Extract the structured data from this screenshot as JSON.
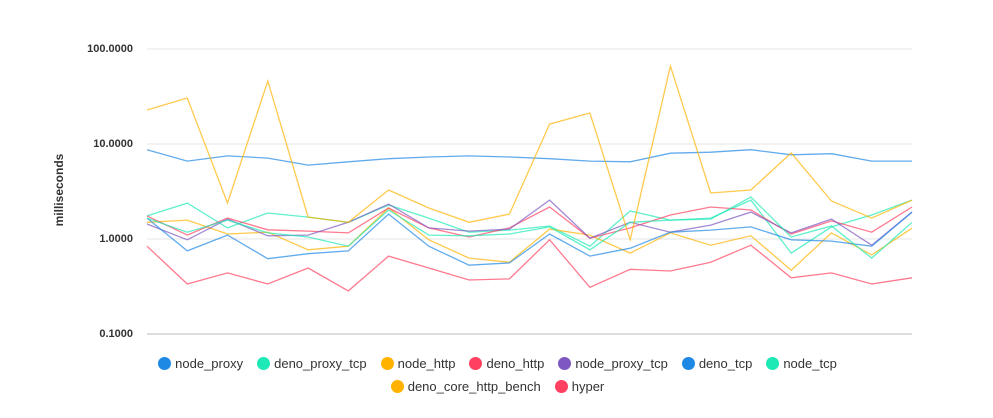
{
  "chart_data": {
    "type": "line",
    "y_label": "milliseconds",
    "log_scale": true,
    "grid": true,
    "categories": [
      null,
      null,
      null,
      null,
      null,
      null,
      null,
      null,
      null,
      null,
      null,
      null,
      null,
      null,
      null,
      null,
      null,
      null,
      null,
      null
    ],
    "ylim": [
      0.1,
      100
    ],
    "yticks": [
      {
        "value": 0.1,
        "label": "0.1000"
      },
      {
        "value": 1,
        "label": "1.0000"
      },
      {
        "value": 10,
        "label": "10.0000"
      },
      {
        "value": 100,
        "label": "100.0000"
      }
    ],
    "series": [
      {
        "name": "node_proxy",
        "color": "#1e88e5",
        "values": [
          8.7,
          6.6,
          7.5,
          7.1,
          6.0,
          6.5,
          7.0,
          7.3,
          7.5,
          7.3,
          7.0,
          6.6,
          6.5,
          8.0,
          8.2,
          8.7,
          7.7,
          7.9,
          6.6,
          6.6
        ]
      },
      {
        "name": "deno_proxy_tcp",
        "color": "#1de9b6",
        "values": [
          1.75,
          2.39,
          1.31,
          1.88,
          1.7,
          1.5,
          2.28,
          1.66,
          1.18,
          1.24,
          1.37,
          0.84,
          1.97,
          1.58,
          1.66,
          2.57,
          0.71,
          1.34,
          1.79,
          2.57
        ]
      },
      {
        "name": "node_http",
        "color": "#ffb300",
        "values": [
          1.5,
          1.58,
          1.13,
          1.18,
          0.77,
          0.84,
          2.12,
          0.98,
          0.63,
          0.57,
          1.27,
          1.1,
          0.71,
          1.16,
          0.86,
          1.08,
          0.47,
          1.16,
          0.68,
          1.3
        ]
      },
      {
        "name": "deno_http",
        "color": "#ff4060",
        "values": [
          1.75,
          1.1,
          1.66,
          1.25,
          1.21,
          1.16,
          2.12,
          1.31,
          1.05,
          1.31,
          2.17,
          1.02,
          1.31,
          1.79,
          2.17,
          2.02,
          1.13,
          1.55,
          1.18,
          2.17
        ]
      },
      {
        "name": "node_proxy_tcp",
        "color": "#7e57c2",
        "values": [
          1.44,
          0.98,
          1.62,
          1.08,
          1.1,
          1.5,
          2.33,
          1.31,
          1.21,
          1.27,
          2.57,
          1.02,
          1.5,
          1.18,
          1.4,
          1.92,
          1.16,
          1.62,
          0.86,
          1.92
        ]
      },
      {
        "name": "deno_tcp",
        "color": "#1e88e5",
        "values": [
          1.66,
          0.75,
          1.1,
          0.62,
          0.7,
          0.75,
          1.83,
          0.84,
          0.53,
          0.56,
          1.13,
          0.66,
          0.8,
          1.18,
          1.24,
          1.34,
          0.98,
          0.95,
          0.84,
          1.92
        ]
      },
      {
        "name": "node_tcp",
        "color": "#1de9b6",
        "values": [
          1.66,
          1.18,
          1.58,
          1.16,
          1.05,
          0.84,
          2.02,
          1.1,
          1.08,
          1.13,
          1.34,
          0.77,
          1.5,
          1.58,
          1.62,
          2.77,
          1.05,
          1.37,
          0.63,
          1.5
        ]
      },
      {
        "name": "deno_core_http_bench",
        "color": "#ffb300",
        "values": [
          22.8,
          30.5,
          2.39,
          46,
          1.7,
          1.5,
          3.28,
          2.12,
          1.5,
          1.83,
          16.2,
          21.2,
          0.98,
          66,
          3.05,
          3.28,
          8.04,
          2.51,
          1.66,
          2.57
        ]
      },
      {
        "name": "hyper",
        "color": "#ff4060",
        "values": [
          0.84,
          0.336,
          0.44,
          0.336,
          0.495,
          0.284,
          0.66,
          0.495,
          0.37,
          0.38,
          0.98,
          0.31,
          0.48,
          0.46,
          0.57,
          0.86,
          0.39,
          0.44,
          0.336,
          0.39
        ]
      }
    ]
  }
}
